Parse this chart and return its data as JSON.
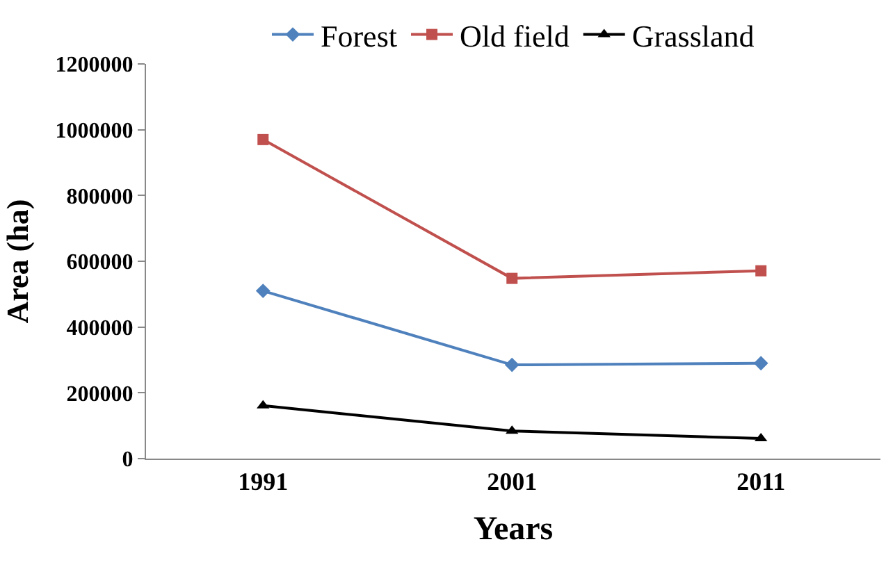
{
  "chart_data": {
    "type": "line",
    "xlabel": "Years",
    "ylabel": "Area (ha)",
    "categories": [
      "1991",
      "2001",
      "2011"
    ],
    "series": [
      {
        "name": "Forest",
        "color": "#4f81bd",
        "values": [
          510000,
          285000,
          290000
        ],
        "marker": "diamond"
      },
      {
        "name": "Old field",
        "color": "#c0504d",
        "values": [
          970000,
          548000,
          571000
        ],
        "marker": "square"
      },
      {
        "name": "Grassland",
        "color": "#000000",
        "values": [
          161000,
          84000,
          61000
        ],
        "marker": "triangle"
      }
    ],
    "ylim": [
      0,
      1200000
    ],
    "yticks": [
      0,
      200000,
      400000,
      600000,
      800000,
      1000000,
      1200000
    ],
    "legend": "top",
    "line_style": "solid"
  }
}
